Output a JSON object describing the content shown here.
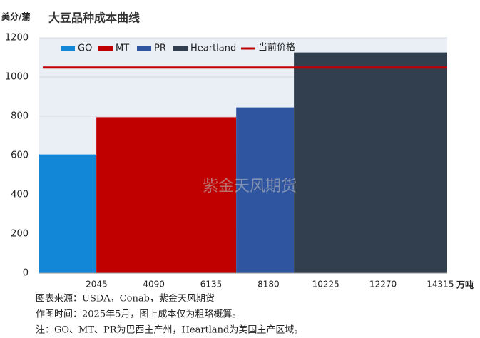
{
  "chart_data": {
    "type": "bar",
    "title": "大豆品种成本曲线",
    "y_label": "美分/蒲",
    "x_label": "万吨",
    "series": [
      {
        "name": "GO",
        "color": "#1287d8",
        "values": [
          605
        ],
        "x_edges": [
          0,
          2040
        ]
      },
      {
        "name": "MT",
        "color": "#c00000",
        "values": [
          795
        ],
        "x_edges": [
          2040,
          7030
        ]
      },
      {
        "name": "PR",
        "color": "#2f55a0",
        "values": [
          845
        ],
        "x_edges": [
          7030,
          9090
        ]
      },
      {
        "name": "Heartland",
        "color": "#323f4f",
        "values": [
          1125
        ],
        "x_edges": [
          9090,
          14560
        ]
      }
    ],
    "lines": [
      {
        "name": "当前价格",
        "color": "#c00000",
        "value": 1048
      }
    ],
    "xlim": [
      0,
      14560
    ],
    "xticks": [
      2045,
      4090,
      6135,
      8180,
      10225,
      12270,
      14315
    ],
    "ylim": [
      0,
      1200
    ],
    "yticks": [
      0,
      200,
      400,
      600,
      800,
      1000,
      1200
    ],
    "grid": true,
    "watermark": "紫金天风期货",
    "notes": [
      "图表来源：USDA，Conab，紫金天风期货",
      "作图时间：2025年5月，图上成本仅为粗略概算。",
      "注：GO、MT、PR为巴西主产州，Heartland为美国主产区域。"
    ]
  }
}
